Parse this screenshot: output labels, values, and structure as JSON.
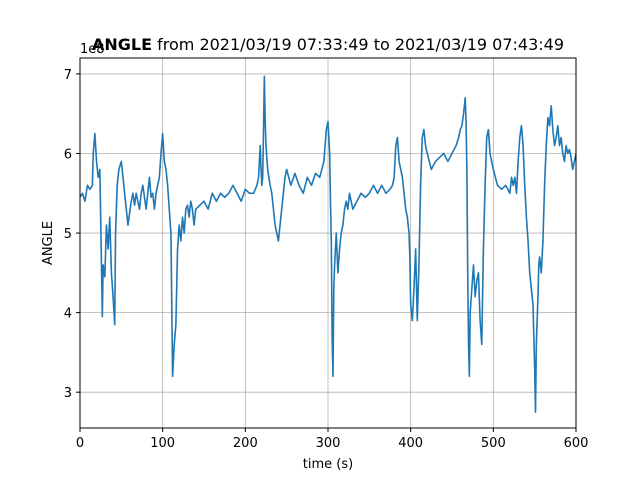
{
  "chart_data": {
    "type": "line",
    "title_bold": "ANGLE",
    "title_rest": " from 2021/03/19 07:33:49 to 2021/03/19 07:43:49",
    "xlabel": "time (s)",
    "ylabel": "ANGLE",
    "offset_text": "1e8",
    "xlim": [
      0,
      600
    ],
    "ylim": [
      2.55,
      7.2
    ],
    "xticks": [
      0,
      100,
      200,
      300,
      400,
      500,
      600
    ],
    "yticks": [
      3,
      4,
      5,
      6,
      7
    ],
    "grid": true,
    "line_color": "#1f77b4",
    "series": [
      {
        "x": [
          0,
          3,
          6,
          9,
          12,
          15,
          16,
          18,
          20,
          22,
          24,
          25,
          27,
          28,
          30,
          32,
          34,
          36,
          38,
          40,
          42,
          43,
          45,
          47,
          50,
          52,
          54,
          56,
          58,
          60,
          62,
          64,
          66,
          68,
          70,
          72,
          74,
          76,
          78,
          80,
          82,
          84,
          86,
          88,
          90,
          92,
          94,
          96,
          98,
          100,
          102,
          104,
          106,
          108,
          110,
          112,
          114,
          116,
          118,
          120,
          122,
          124,
          126,
          128,
          130,
          132,
          134,
          136,
          138,
          140,
          145,
          150,
          155,
          160,
          165,
          170,
          175,
          180,
          185,
          190,
          195,
          200,
          205,
          210,
          214,
          216,
          218,
          219,
          220,
          221,
          222,
          223,
          224,
          225,
          227,
          230,
          232,
          234,
          236,
          238,
          240,
          242,
          244,
          246,
          248,
          250,
          255,
          260,
          265,
          270,
          275,
          280,
          285,
          290,
          295,
          298,
          300,
          302,
          303,
          304,
          305,
          306,
          307,
          308,
          310,
          312,
          314,
          316,
          318,
          320,
          322,
          324,
          326,
          328,
          330,
          335,
          340,
          345,
          350,
          355,
          360,
          365,
          370,
          375,
          378,
          380,
          382,
          384,
          386,
          388,
          390,
          392,
          394,
          396,
          398,
          399,
          400,
          402,
          404,
          406,
          408,
          410,
          412,
          414,
          416,
          418,
          420,
          425,
          430,
          435,
          440,
          445,
          450,
          455,
          458,
          460,
          462,
          464,
          466,
          467,
          468,
          469,
          470,
          471,
          472,
          474,
          476,
          478,
          480,
          482,
          484,
          486,
          488,
          490,
          492,
          494,
          496,
          500,
          505,
          510,
          515,
          520,
          522,
          524,
          526,
          528,
          530,
          532,
          534,
          536,
          538,
          540,
          542,
          544,
          546,
          548,
          549,
          550,
          551,
          552,
          553,
          554,
          555,
          556,
          558,
          560,
          562,
          564,
          566,
          568,
          570,
          572,
          574,
          576,
          578,
          580,
          582,
          584,
          586,
          588,
          590,
          592,
          594,
          596,
          598,
          600
        ],
        "y": [
          5.45,
          5.5,
          5.4,
          5.6,
          5.55,
          5.6,
          6.0,
          6.25,
          5.9,
          5.7,
          5.8,
          5.2,
          3.95,
          4.6,
          4.45,
          5.1,
          4.8,
          5.2,
          4.5,
          4.2,
          3.85,
          5.0,
          5.6,
          5.8,
          5.9,
          5.7,
          5.5,
          5.3,
          5.1,
          5.25,
          5.4,
          5.5,
          5.35,
          5.5,
          5.4,
          5.3,
          5.5,
          5.6,
          5.45,
          5.3,
          5.5,
          5.7,
          5.45,
          5.5,
          5.3,
          5.5,
          5.6,
          5.7,
          6.0,
          6.25,
          5.9,
          5.8,
          5.6,
          5.3,
          5.0,
          3.2,
          3.6,
          3.85,
          4.8,
          5.1,
          4.9,
          5.2,
          5.0,
          5.3,
          5.35,
          5.2,
          5.4,
          5.3,
          5.1,
          5.3,
          5.35,
          5.4,
          5.3,
          5.5,
          5.4,
          5.5,
          5.45,
          5.5,
          5.6,
          5.5,
          5.4,
          5.55,
          5.5,
          5.5,
          5.6,
          5.7,
          6.1,
          5.8,
          5.6,
          5.7,
          6.3,
          6.97,
          6.4,
          6.1,
          5.8,
          5.6,
          5.5,
          5.3,
          5.1,
          5.0,
          4.9,
          5.1,
          5.3,
          5.5,
          5.7,
          5.8,
          5.6,
          5.75,
          5.6,
          5.5,
          5.7,
          5.6,
          5.75,
          5.7,
          5.9,
          6.3,
          6.4,
          6.0,
          5.4,
          4.9,
          3.7,
          3.2,
          4.3,
          4.6,
          5.0,
          4.5,
          4.8,
          5.0,
          5.1,
          5.3,
          5.4,
          5.3,
          5.5,
          5.4,
          5.3,
          5.4,
          5.5,
          5.45,
          5.5,
          5.6,
          5.5,
          5.6,
          5.5,
          5.55,
          5.6,
          5.7,
          6.1,
          6.2,
          5.9,
          5.8,
          5.7,
          5.5,
          5.3,
          5.2,
          5.0,
          4.7,
          4.1,
          3.9,
          4.3,
          4.8,
          3.9,
          4.6,
          5.6,
          6.2,
          6.3,
          6.1,
          6.0,
          5.8,
          5.9,
          5.95,
          6.0,
          5.9,
          6.0,
          6.1,
          6.2,
          6.3,
          6.35,
          6.5,
          6.7,
          6.4,
          5.8,
          4.5,
          3.6,
          3.2,
          4.0,
          4.3,
          4.6,
          4.2,
          4.4,
          4.5,
          3.9,
          3.6,
          4.8,
          5.6,
          6.2,
          6.3,
          6.0,
          5.8,
          5.6,
          5.55,
          5.6,
          5.5,
          5.7,
          5.6,
          5.7,
          5.5,
          5.9,
          6.2,
          6.35,
          6.1,
          5.6,
          5.2,
          4.9,
          4.5,
          4.3,
          4.1,
          3.7,
          3.3,
          2.75,
          3.6,
          3.9,
          4.2,
          4.6,
          4.7,
          4.5,
          4.9,
          5.6,
          6.1,
          6.45,
          6.35,
          6.6,
          6.3,
          6.1,
          6.2,
          6.35,
          6.1,
          6.2,
          6.0,
          5.9,
          6.1,
          6.0,
          6.05,
          5.95,
          5.8,
          5.9,
          6.0
        ]
      }
    ]
  }
}
